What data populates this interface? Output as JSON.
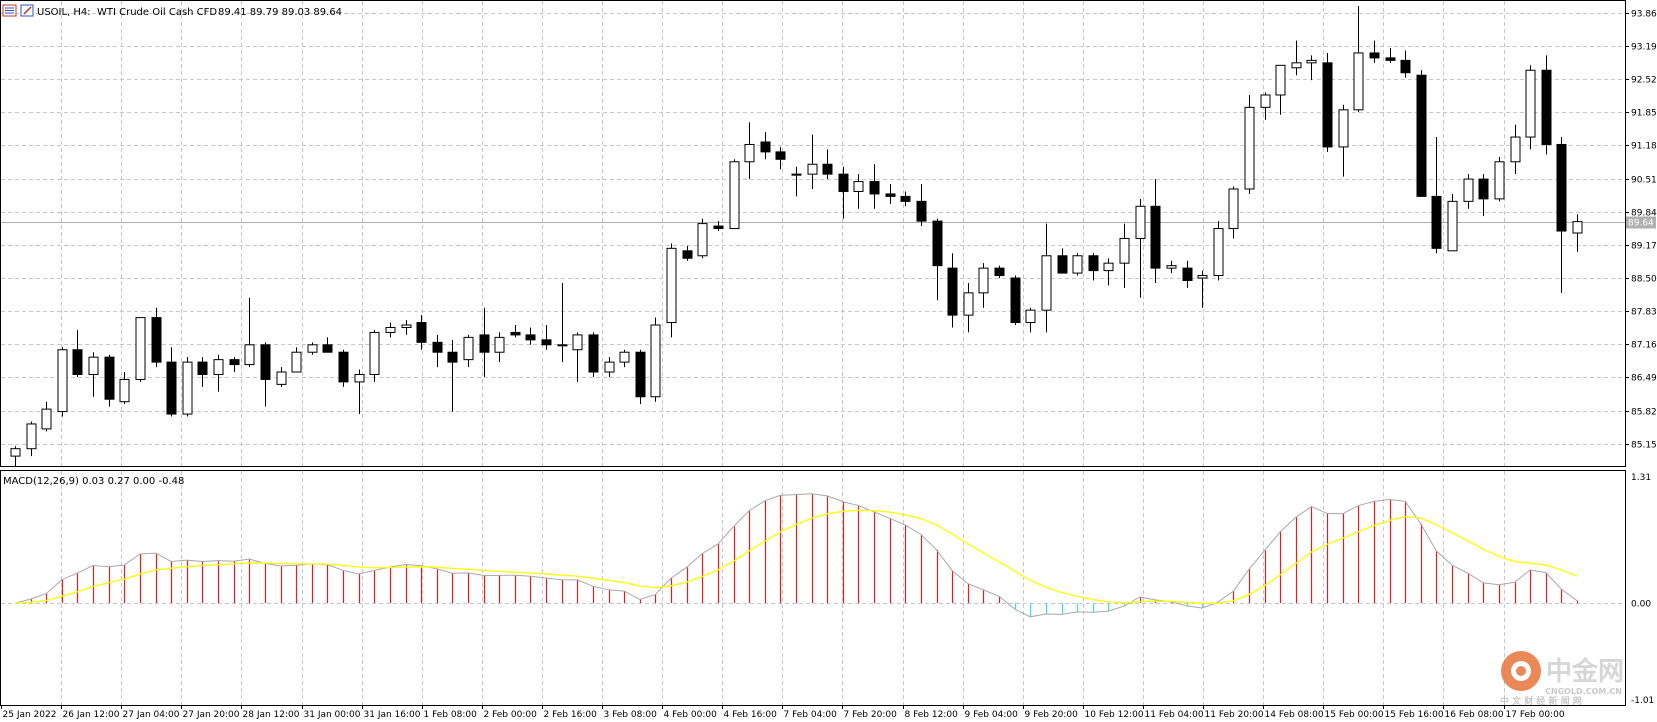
{
  "header": {
    "symbol": "USOIL, H4:",
    "description": "WTI Crude Oil Cash CFD",
    "ohlc": "89.41 89.79 89.03 89.64",
    "icon_left": "list-icon",
    "icon_right": "chart-edit-icon"
  },
  "indicator": {
    "label": "MACD(12,26,9) 0.03 0.27 0.00 -0.48"
  },
  "watermark": {
    "brand": "中金网",
    "domain": "CNGOLD.COM.CN",
    "tagline": "中 文 财 经 新 闻 网"
  },
  "colors": {
    "bull": "#ffffff",
    "bear": "#000000",
    "macd_line": "#a8a8a8",
    "signal_line": "#ffff00",
    "hist_pos": "#e02020",
    "hist_neg": "#40e0e0",
    "grid": "#c8c8c8"
  },
  "chart_data": {
    "type": "candlestick",
    "price_axis": {
      "min": 84.7,
      "max": 94.1,
      "ticks": [
        "93.86",
        "93.19",
        "92.52",
        "91.85",
        "91.18",
        "90.51",
        "89.84",
        "89.17",
        "88.50",
        "87.83",
        "87.16",
        "86.49",
        "85.82",
        "85.15"
      ],
      "current_price": "89.64"
    },
    "time_axis": {
      "labels": [
        "25 Jan 2022",
        "26 Jan 12:00",
        "27 Jan 04:00",
        "27 Jan 20:00",
        "28 Jan 12:00",
        "31 Jan 00:00",
        "31 Jan 16:00",
        "1 Feb 08:00",
        "2 Feb 00:00",
        "2 Feb 16:00",
        "3 Feb 08:00",
        "4 Feb 00:00",
        "4 Feb 16:00",
        "7 Feb 04:00",
        "7 Feb 20:00",
        "8 Feb 12:00",
        "9 Feb 04:00",
        "9 Feb 20:00",
        "10 Feb 12:00",
        "11 Feb 04:00",
        "11 Feb 20:00",
        "14 Feb 08:00",
        "15 Feb 00:00",
        "15 Feb 16:00",
        "16 Feb 08:00",
        "17 Feb 00:00"
      ]
    },
    "candles": [
      [
        84.9,
        85.1,
        84.7,
        85.05
      ],
      [
        85.05,
        85.6,
        84.9,
        85.55
      ],
      [
        85.45,
        86.0,
        85.4,
        85.85
      ],
      [
        85.8,
        87.1,
        85.7,
        87.05
      ],
      [
        87.05,
        87.45,
        86.5,
        86.55
      ],
      [
        86.55,
        87.0,
        86.1,
        86.9
      ],
      [
        86.9,
        86.95,
        85.9,
        86.05
      ],
      [
        86.0,
        86.6,
        85.95,
        86.45
      ],
      [
        86.45,
        87.7,
        86.4,
        87.7
      ],
      [
        87.7,
        87.9,
        86.7,
        86.8
      ],
      [
        86.8,
        87.1,
        85.7,
        85.75
      ],
      [
        85.75,
        86.9,
        85.7,
        86.8
      ],
      [
        86.8,
        86.9,
        86.3,
        86.55
      ],
      [
        86.55,
        86.95,
        86.2,
        86.85
      ],
      [
        86.85,
        86.9,
        86.6,
        86.75
      ],
      [
        86.75,
        88.1,
        86.7,
        87.15
      ],
      [
        87.15,
        87.2,
        85.9,
        86.45
      ],
      [
        86.35,
        86.7,
        86.3,
        86.6
      ],
      [
        86.6,
        87.1,
        86.6,
        87.0
      ],
      [
        87.0,
        87.2,
        86.95,
        87.15
      ],
      [
        87.15,
        87.3,
        87.0,
        87.0
      ],
      [
        87.0,
        87.05,
        86.3,
        86.4
      ],
      [
        86.4,
        86.65,
        85.75,
        86.55
      ],
      [
        86.55,
        87.45,
        86.4,
        87.4
      ],
      [
        87.4,
        87.6,
        87.3,
        87.5
      ],
      [
        87.5,
        87.65,
        87.35,
        87.55
      ],
      [
        87.6,
        87.75,
        87.05,
        87.2
      ],
      [
        87.2,
        87.35,
        86.7,
        87.0
      ],
      [
        87.0,
        87.25,
        85.8,
        86.8
      ],
      [
        86.85,
        87.35,
        86.7,
        87.3
      ],
      [
        87.35,
        87.9,
        86.5,
        87.0
      ],
      [
        87.0,
        87.4,
        86.8,
        87.3
      ],
      [
        87.4,
        87.55,
        87.3,
        87.35
      ],
      [
        87.35,
        87.5,
        87.15,
        87.25
      ],
      [
        87.25,
        87.55,
        87.05,
        87.15
      ],
      [
        87.15,
        88.4,
        86.8,
        87.15
      ],
      [
        87.05,
        87.4,
        86.4,
        87.35
      ],
      [
        87.35,
        87.4,
        86.5,
        86.6
      ],
      [
        86.6,
        86.9,
        86.5,
        86.8
      ],
      [
        86.8,
        87.05,
        86.7,
        87.0
      ],
      [
        87.0,
        87.05,
        85.95,
        86.1
      ],
      [
        86.1,
        87.7,
        86.0,
        87.55
      ],
      [
        87.6,
        89.2,
        87.3,
        89.1
      ],
      [
        89.05,
        89.15,
        88.85,
        88.9
      ],
      [
        88.95,
        89.7,
        88.9,
        89.6
      ],
      [
        89.55,
        89.65,
        89.45,
        89.5
      ],
      [
        89.5,
        90.9,
        89.5,
        90.85
      ],
      [
        90.85,
        91.65,
        90.5,
        91.2
      ],
      [
        91.25,
        91.45,
        90.9,
        91.05
      ],
      [
        91.05,
        91.15,
        90.7,
        90.9
      ],
      [
        90.6,
        90.75,
        90.15,
        90.6
      ],
      [
        90.6,
        91.4,
        90.3,
        90.8
      ],
      [
        90.8,
        91.1,
        90.5,
        90.6
      ],
      [
        90.6,
        90.75,
        89.7,
        90.25
      ],
      [
        90.25,
        90.6,
        89.9,
        90.45
      ],
      [
        90.45,
        90.8,
        89.9,
        90.2
      ],
      [
        90.2,
        90.4,
        90.0,
        90.15
      ],
      [
        90.15,
        90.25,
        89.95,
        90.05
      ],
      [
        90.05,
        90.4,
        89.55,
        89.65
      ],
      [
        89.65,
        89.7,
        88.05,
        88.75
      ],
      [
        88.7,
        89.0,
        87.5,
        87.75
      ],
      [
        87.75,
        88.4,
        87.4,
        88.2
      ],
      [
        88.2,
        88.8,
        87.9,
        88.7
      ],
      [
        88.7,
        88.75,
        88.5,
        88.55
      ],
      [
        88.5,
        88.55,
        87.55,
        87.6
      ],
      [
        87.6,
        87.9,
        87.4,
        87.85
      ],
      [
        87.85,
        89.6,
        87.4,
        88.95
      ],
      [
        88.95,
        89.1,
        88.6,
        88.6
      ],
      [
        88.6,
        89.0,
        88.55,
        88.95
      ],
      [
        88.95,
        89.0,
        88.45,
        88.65
      ],
      [
        88.65,
        88.9,
        88.35,
        88.8
      ],
      [
        88.8,
        89.6,
        88.3,
        89.3
      ],
      [
        89.3,
        90.1,
        88.1,
        89.95
      ],
      [
        89.95,
        90.5,
        88.4,
        88.7
      ],
      [
        88.7,
        88.85,
        88.6,
        88.75
      ],
      [
        88.7,
        88.85,
        88.3,
        88.45
      ],
      [
        88.5,
        88.65,
        87.9,
        88.55
      ],
      [
        88.55,
        89.65,
        88.45,
        89.5
      ],
      [
        89.5,
        90.35,
        89.3,
        90.3
      ],
      [
        90.3,
        92.2,
        90.2,
        91.95
      ],
      [
        91.95,
        92.25,
        91.7,
        92.2
      ],
      [
        92.2,
        92.75,
        91.8,
        92.8
      ],
      [
        92.75,
        93.3,
        92.6,
        92.85
      ],
      [
        92.85,
        93.0,
        92.5,
        92.9
      ],
      [
        92.85,
        93.05,
        91.05,
        91.15
      ],
      [
        91.15,
        92.0,
        90.55,
        91.9
      ],
      [
        91.9,
        94.0,
        91.85,
        93.05
      ],
      [
        93.05,
        93.3,
        92.85,
        92.95
      ],
      [
        92.95,
        93.15,
        92.85,
        92.9
      ],
      [
        92.9,
        93.1,
        92.55,
        92.65
      ],
      [
        92.6,
        92.7,
        90.15,
        90.15
      ],
      [
        90.15,
        91.35,
        89.0,
        89.1
      ],
      [
        89.05,
        90.2,
        89.05,
        90.05
      ],
      [
        90.05,
        90.6,
        89.9,
        90.5
      ],
      [
        90.5,
        90.6,
        89.75,
        90.1
      ],
      [
        90.1,
        90.95,
        90.05,
        90.85
      ],
      [
        90.85,
        91.6,
        90.6,
        91.35
      ],
      [
        91.35,
        92.8,
        91.1,
        92.7
      ],
      [
        92.7,
        93.0,
        91.0,
        91.2
      ],
      [
        91.2,
        91.35,
        88.2,
        89.45
      ],
      [
        89.41,
        89.79,
        89.03,
        89.64
      ]
    ],
    "macd_axis": {
      "max": 1.31,
      "min": -1.01,
      "zero_label": "0.00",
      "max_label": "1.31",
      "min_label": "-1.01"
    }
  }
}
